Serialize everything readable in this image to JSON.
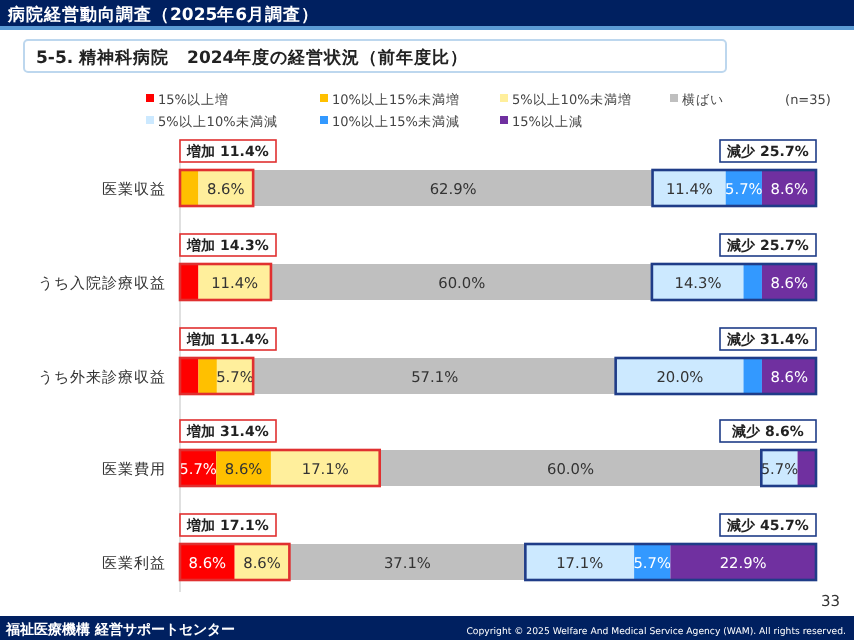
{
  "chart_data": {
    "type": "bar",
    "orientation": "horizontal",
    "stacked": true,
    "title": "病院経営動向調査（2025年6月調査）",
    "subtitle": "5-5. 精神科病院　2024年度の経営状況（前年度比）",
    "categories": [
      "医業収益",
      "うち入院診療収益",
      "うち外来診療収益",
      "医業費用",
      "医業利益"
    ],
    "series": [
      {
        "name": "15%以上増",
        "color": "#ff0000",
        "values": [
          0,
          2.9,
          2.9,
          5.7,
          8.6
        ],
        "value_labels": [
          null,
          null,
          null,
          "5.7%",
          "8.6%"
        ]
      },
      {
        "name": "10%以上15%未満増",
        "color": "#ffc000",
        "values": [
          2.9,
          0,
          2.9,
          8.6,
          0
        ],
        "value_labels": [
          null,
          null,
          null,
          "8.6%",
          null
        ]
      },
      {
        "name": "5%以上10%未満増",
        "color": "#ffef9c",
        "values": [
          8.6,
          11.4,
          5.7,
          17.1,
          8.6
        ],
        "value_labels": [
          "8.6%",
          "11.4%",
          "5.7%",
          "17.1%",
          "8.6%"
        ]
      },
      {
        "name": "横ばい",
        "color": "#bfbfbf",
        "values": [
          62.9,
          60.0,
          57.1,
          60.0,
          37.1
        ],
        "value_labels": [
          "62.9%",
          "60.0%",
          "57.1%",
          "60.0%",
          "37.1%"
        ]
      },
      {
        "name": "5%以上10%未満減",
        "color": "#cce9ff",
        "values": [
          11.4,
          14.3,
          20.0,
          5.7,
          17.1
        ],
        "value_labels": [
          "11.4%",
          "14.3%",
          "20.0%",
          "5.7%",
          "17.1%"
        ]
      },
      {
        "name": "10%以上15%未満減",
        "color": "#3399ff",
        "values": [
          5.7,
          2.9,
          2.9,
          0,
          5.7
        ],
        "value_labels": [
          "5.7%",
          null,
          null,
          null,
          "5.7%"
        ]
      },
      {
        "name": "15%以上減",
        "color": "#7030a0",
        "values": [
          8.6,
          8.6,
          8.6,
          2.9,
          22.9
        ],
        "value_labels": [
          "8.6%",
          "8.6%",
          "8.6%",
          null,
          "22.9%"
        ]
      }
    ],
    "xlim": [
      0,
      100
    ],
    "tick_labels": "y",
    "legend": "top",
    "grid": false,
    "annotations": [
      "増加 11.4%",
      "減少 25.7%",
      "増加 14.3%",
      "減少 25.7%",
      "増加 11.4%",
      "減少 31.4%",
      "増加 31.4%",
      "減少 8.6%",
      "増加 17.1%",
      "減少 45.7%",
      "(n=35)",
      "33",
      "福祉医療機構 経営サポートセンター",
      "Copyright © 2025 Welfare And Medical Service Agency (WAM). All rights reserved."
    ]
  }
}
